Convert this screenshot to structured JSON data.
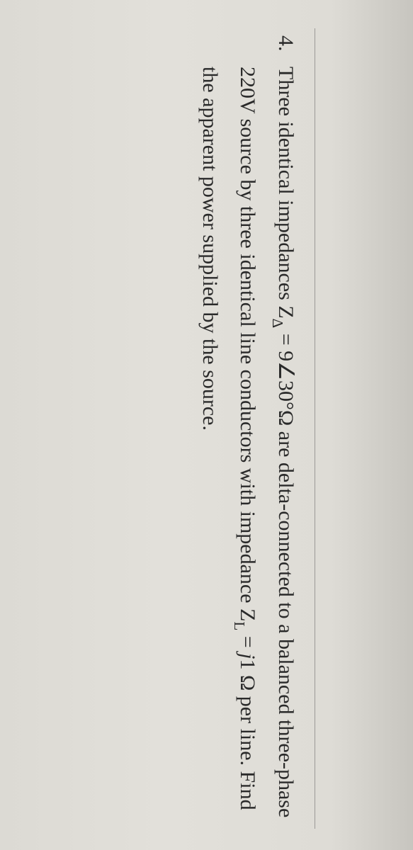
{
  "background_color": "#dedcd6",
  "text_color": "#2a2a2a",
  "font_family": "Times New Roman",
  "font_size_pt": 22,
  "problem": {
    "number": "4.",
    "line1_a": "Three identical impedances Z",
    "line1_sub": "Δ",
    "line1_b": " = 9∠30°Ω are delta-connected to a balanced three-phase",
    "line2_a": "220V source by three identical line conductors with impedance Z",
    "line2_sub": "L",
    "line2_b": " = ",
    "line2_ital": "j",
    "line2_c": "1 Ω per line. Find",
    "line3": "the apparent power supplied by the source."
  }
}
